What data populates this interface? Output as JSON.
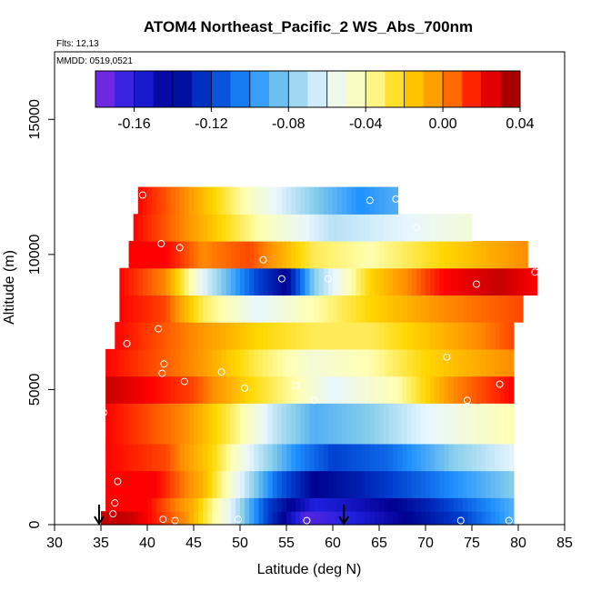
{
  "chart_data": {
    "type": "heatmap",
    "title": "ATOM4 Northeast_Pacific_2 WS_Abs_700nm",
    "annotations": [
      "Flts: 12,13",
      "MMDD: 0519,0521"
    ],
    "xlabel": "Latitude (deg N)",
    "ylabel": "Altitude (m)",
    "xlim": [
      30,
      85
    ],
    "ylim": [
      0,
      17500
    ],
    "xticks": [
      "30",
      "35",
      "40",
      "45",
      "50",
      "55",
      "60",
      "65",
      "70",
      "75",
      "80",
      "85"
    ],
    "yticks": [
      "0",
      "5000",
      "10000",
      "15000"
    ],
    "colorbar": {
      "range": [
        -0.18,
        0.04
      ],
      "ticks": [
        "-0.16",
        "-0.12",
        "-0.08",
        "-0.04",
        "0.00",
        "0.04"
      ],
      "colors": [
        "#8a2be2",
        "#2020e0",
        "#000090",
        "#0040d0",
        "#1e90ff",
        "#87ceeb",
        "#e8f6ff",
        "#ffffb0",
        "#ffd700",
        "#ff8c00",
        "#ff0000",
        "#8b0000"
      ],
      "placement": "top"
    },
    "grid": false,
    "arrows": [
      {
        "x": 34.8,
        "y": 0
      },
      {
        "x": 61.2,
        "y": 0
      }
    ],
    "data_range": {
      "lat": [
        34.5,
        82
      ],
      "alt": [
        0,
        12500
      ]
    },
    "bands": [
      {
        "alt": [
          0,
          500
        ],
        "lat": [
          35,
          79.5
        ],
        "profile": [
          [
            35,
            0.03
          ],
          [
            38,
            0.03
          ],
          [
            44,
            0.0
          ],
          [
            49,
            -0.06
          ],
          [
            53,
            -0.12
          ],
          [
            57,
            -0.17
          ],
          [
            62,
            -0.16
          ],
          [
            68,
            -0.14
          ],
          [
            74,
            -0.12
          ],
          [
            79.5,
            -0.09
          ]
        ]
      },
      {
        "alt": [
          500,
          1000
        ],
        "lat": [
          35.5,
          79.5
        ],
        "profile": [
          [
            35.5,
            0.02
          ],
          [
            40,
            0.02
          ],
          [
            45,
            -0.01
          ],
          [
            49,
            -0.06
          ],
          [
            53,
            -0.12
          ],
          [
            58,
            -0.16
          ],
          [
            63,
            -0.15
          ],
          [
            70,
            -0.13
          ],
          [
            79.5,
            -0.09
          ]
        ]
      },
      {
        "alt": [
          1000,
          2000
        ],
        "lat": [
          35.5,
          79.5
        ],
        "profile": [
          [
            35.5,
            0.02
          ],
          [
            41,
            0.02
          ],
          [
            46,
            -0.01
          ],
          [
            50,
            -0.06
          ],
          [
            54,
            -0.11
          ],
          [
            58,
            -0.14
          ],
          [
            63,
            -0.13
          ],
          [
            70,
            -0.11
          ],
          [
            79.5,
            -0.08
          ]
        ]
      },
      {
        "alt": [
          2000,
          3000
        ],
        "lat": [
          35.5,
          79.5
        ],
        "profile": [
          [
            35.5,
            0.02
          ],
          [
            42,
            0.01
          ],
          [
            47,
            -0.02
          ],
          [
            51,
            -0.06
          ],
          [
            56,
            -0.1
          ],
          [
            60,
            -0.12
          ],
          [
            66,
            -0.11
          ],
          [
            73,
            -0.08
          ],
          [
            79.5,
            -0.06
          ]
        ]
      },
      {
        "alt": [
          3000,
          4500
        ],
        "lat": [
          35.5,
          79.5
        ],
        "profile": [
          [
            35.5,
            0.02
          ],
          [
            44,
            0.0
          ],
          [
            49,
            -0.03
          ],
          [
            54,
            -0.07
          ],
          [
            58,
            -0.09
          ],
          [
            64,
            -0.08
          ],
          [
            70,
            -0.06
          ],
          [
            79.5,
            -0.04
          ]
        ]
      },
      {
        "alt": [
          4500,
          5500
        ],
        "lat": [
          35.5,
          79.5
        ],
        "profile": [
          [
            35.5,
            0.03
          ],
          [
            45,
            0.01
          ],
          [
            51,
            -0.02
          ],
          [
            56,
            -0.04
          ],
          [
            60,
            -0.06
          ],
          [
            67,
            -0.04
          ],
          [
            73,
            0.0
          ],
          [
            79.5,
            0.02
          ]
        ]
      },
      {
        "alt": [
          5500,
          6500
        ],
        "lat": [
          35.5,
          79.5
        ],
        "profile": [
          [
            35.5,
            0.02
          ],
          [
            45,
            0.0
          ],
          [
            52,
            -0.03
          ],
          [
            58,
            -0.05
          ],
          [
            64,
            -0.04
          ],
          [
            70,
            -0.02
          ],
          [
            79.5,
            0.0
          ]
        ]
      },
      {
        "alt": [
          6500,
          7500
        ],
        "lat": [
          36.5,
          79.5
        ],
        "profile": [
          [
            36.5,
            0.02
          ],
          [
            45,
            0.0
          ],
          [
            52,
            -0.02
          ],
          [
            58,
            -0.03
          ],
          [
            64,
            -0.03
          ],
          [
            72,
            -0.01
          ],
          [
            79.5,
            0.01
          ]
        ]
      },
      {
        "alt": [
          7500,
          8500
        ],
        "lat": [
          37,
          80.5
        ],
        "profile": [
          [
            37,
            0.02
          ],
          [
            42,
            0.01
          ],
          [
            46,
            -0.03
          ],
          [
            52,
            -0.06
          ],
          [
            58,
            -0.04
          ],
          [
            64,
            -0.02
          ],
          [
            72,
            0.0
          ],
          [
            80.5,
            0.01
          ]
        ]
      },
      {
        "alt": [
          8500,
          9500
        ],
        "lat": [
          37,
          82
        ],
        "profile": [
          [
            37,
            0.02
          ],
          [
            42,
            0.0
          ],
          [
            46,
            -0.06
          ],
          [
            52,
            -0.12
          ],
          [
            55,
            -0.14
          ],
          [
            58,
            -0.08
          ],
          [
            64,
            -0.02
          ],
          [
            72,
            0.02
          ],
          [
            78,
            0.03
          ],
          [
            82,
            0.02
          ]
        ]
      },
      {
        "alt": [
          9500,
          10500
        ],
        "lat": [
          38,
          81
        ],
        "profile": [
          [
            38,
            0.02
          ],
          [
            42,
            0.02
          ],
          [
            46,
            0.0
          ],
          [
            51,
            0.01
          ],
          [
            53,
            0.0
          ],
          [
            58,
            -0.03
          ],
          [
            64,
            -0.04
          ],
          [
            72,
            -0.02
          ],
          [
            81,
            0.0
          ]
        ]
      },
      {
        "alt": [
          10500,
          11500
        ],
        "lat": [
          38.5,
          75
        ],
        "profile": [
          [
            38.5,
            0.02
          ],
          [
            44,
            0.0
          ],
          [
            52,
            -0.04
          ],
          [
            60,
            -0.07
          ],
          [
            68,
            -0.06
          ],
          [
            75,
            -0.05
          ]
        ]
      },
      {
        "alt": [
          11500,
          12500
        ],
        "lat": [
          39,
          67
        ],
        "profile": [
          [
            39,
            0.02
          ],
          [
            44,
            0.0
          ],
          [
            52,
            -0.05
          ],
          [
            58,
            -0.08
          ],
          [
            63,
            -0.1
          ],
          [
            67,
            -0.09
          ]
        ]
      }
    ],
    "points": [
      [
        39.5,
        12200
      ],
      [
        41.5,
        10400
      ],
      [
        43.5,
        10250
      ],
      [
        52.5,
        9800
      ],
      [
        54.5,
        9100
      ],
      [
        59.5,
        9100
      ],
      [
        64,
        12000
      ],
      [
        66.8,
        12050
      ],
      [
        69,
        11000
      ],
      [
        75.5,
        8900
      ],
      [
        81.8,
        9350
      ],
      [
        37.8,
        6700
      ],
      [
        41.2,
        7250
      ],
      [
        41.8,
        5950
      ],
      [
        41.6,
        5600
      ],
      [
        44,
        5300
      ],
      [
        48,
        5650
      ],
      [
        50.5,
        5050
      ],
      [
        56,
        5150
      ],
      [
        58,
        4600
      ],
      [
        72.3,
        6200
      ],
      [
        74.5,
        4600
      ],
      [
        78,
        5200
      ],
      [
        80.2,
        4400
      ],
      [
        35.3,
        4150
      ],
      [
        36.8,
        1600
      ],
      [
        36.5,
        800
      ],
      [
        36.3,
        400
      ],
      [
        41.7,
        200
      ],
      [
        43,
        150
      ],
      [
        49.8,
        200
      ],
      [
        57.2,
        150
      ],
      [
        73.8,
        150
      ],
      [
        79,
        150
      ]
    ]
  }
}
